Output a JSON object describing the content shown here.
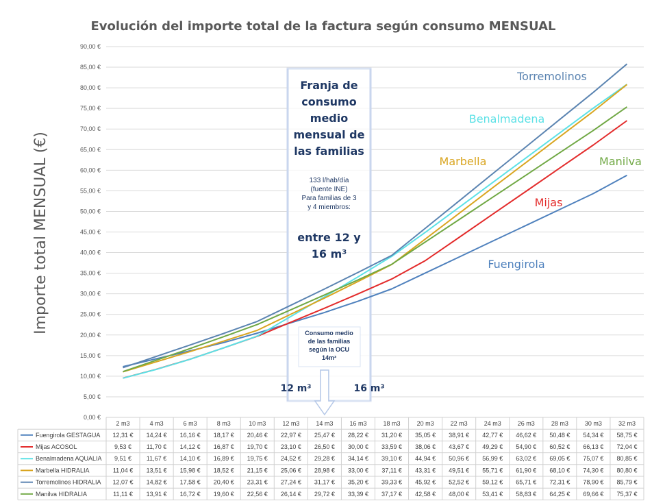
{
  "chart_data": {
    "type": "line",
    "title": "Evolución del importe total de la factura según consumo MENSUAL",
    "ylabel": "Importe total MENSUAL (€)",
    "xlabel": "",
    "ylim": [
      0,
      90
    ],
    "yticks": [
      "0,00 €",
      "5,00 €",
      "10,00 €",
      "15,00 €",
      "20,00 €",
      "25,00 €",
      "30,00 €",
      "35,00 €",
      "40,00 €",
      "45,00 €",
      "50,00 €",
      "55,00 €",
      "60,00 €",
      "65,00 €",
      "70,00 €",
      "75,00 €",
      "80,00 €",
      "85,00 €",
      "90,00 €"
    ],
    "categories": [
      "2 m3",
      "4 m3",
      "6 m3",
      "8 m3",
      "10 m3",
      "12 m3",
      "14 m3",
      "16 m3",
      "18 m3",
      "20 m3",
      "22 m3",
      "24 m3",
      "26 m3",
      "28 m3",
      "30 m3",
      "32 m3"
    ],
    "grid": true,
    "legend": "table-bottom",
    "series": [
      {
        "name": "Fuengirola GESTAGUA",
        "color": "#4f81bd",
        "values": [
          12.31,
          14.24,
          16.16,
          18.17,
          20.46,
          22.97,
          25.47,
          28.22,
          31.2,
          35.05,
          38.91,
          42.77,
          46.62,
          50.48,
          54.34,
          58.75
        ],
        "labels": [
          "12,31 €",
          "14,24 €",
          "16,16 €",
          "18,17 €",
          "20,46 €",
          "22,97 €",
          "25,47 €",
          "28,22 €",
          "31,20 €",
          "35,05 €",
          "38,91 €",
          "42,77 €",
          "46,62 €",
          "50,48 €",
          "54,34 €",
          "58,75 €"
        ]
      },
      {
        "name": "Mijas ACOSOL",
        "color": "#e32b2b",
        "values": [
          9.53,
          11.7,
          14.12,
          16.87,
          19.7,
          23.1,
          26.5,
          30.0,
          33.59,
          38.06,
          43.67,
          49.29,
          54.9,
          60.52,
          66.13,
          72.04
        ],
        "labels": [
          "9,53 €",
          "11,70 €",
          "14,12 €",
          "16,87 €",
          "19,70 €",
          "23,10 €",
          "26,50 €",
          "30,00 €",
          "33,59 €",
          "38,06 €",
          "43,67 €",
          "49,29 €",
          "54,90 €",
          "60,52 €",
          "66,13 €",
          "72,04 €"
        ]
      },
      {
        "name": "Benalmadena AQUALIA",
        "color": "#5ce1e6",
        "values": [
          9.51,
          11.67,
          14.1,
          16.89,
          19.75,
          24.52,
          29.28,
          34.14,
          39.1,
          44.94,
          50.96,
          56.99,
          63.02,
          69.05,
          75.07,
          80.85
        ],
        "labels": [
          "9,51 €",
          "11,67 €",
          "14,10 €",
          "16,89 €",
          "19,75 €",
          "24,52 €",
          "29,28 €",
          "34,14 €",
          "39,10 €",
          "44,94 €",
          "50,96 €",
          "56,99 €",
          "63,02 €",
          "69,05 €",
          "75,07 €",
          "80,85 €"
        ]
      },
      {
        "name": "Marbella HIDRALIA",
        "color": "#d9a520",
        "values": [
          11.04,
          13.51,
          15.98,
          18.52,
          21.15,
          25.06,
          28.98,
          33.0,
          37.11,
          43.31,
          49.51,
          55.71,
          61.9,
          68.1,
          74.3,
          80.8
        ],
        "labels": [
          "11,04 €",
          "13,51 €",
          "15,98 €",
          "18,52 €",
          "21,15 €",
          "25,06 €",
          "28,98 €",
          "33,00 €",
          "37,11 €",
          "43,31 €",
          "49,51 €",
          "55,71 €",
          "61,90 €",
          "68,10 €",
          "74,30 €",
          "80,80 €"
        ]
      },
      {
        "name": "Torremolinos HIDRALIA",
        "color": "#5b84b1",
        "values": [
          12.07,
          14.82,
          17.58,
          20.4,
          23.31,
          27.24,
          31.17,
          35.2,
          39.33,
          45.92,
          52.52,
          59.12,
          65.71,
          72.31,
          78.9,
          85.79
        ],
        "labels": [
          "12,07 €",
          "14,82 €",
          "17,58 €",
          "20,40 €",
          "23,31 €",
          "27,24 €",
          "31,17 €",
          "35,20 €",
          "39,33 €",
          "45,92 €",
          "52,52 €",
          "59,12 €",
          "65,71 €",
          "72,31 €",
          "78,90 €",
          "85,79 €"
        ]
      },
      {
        "name": "Manilva HIDRALIA",
        "color": "#70a844",
        "values": [
          11.11,
          13.91,
          16.72,
          19.6,
          22.56,
          26.14,
          29.72,
          33.39,
          37.17,
          42.58,
          48.0,
          53.41,
          58.83,
          64.25,
          69.66,
          75.37
        ],
        "labels": [
          "11,11 €",
          "13,91 €",
          "16,72 €",
          "19,60 €",
          "22,56 €",
          "26,14 €",
          "29,72 €",
          "33,39 €",
          "37,17 €",
          "42,58 €",
          "48,00 €",
          "53,41 €",
          "58,83 €",
          "64,25 €",
          "69,66 €",
          "75,37 €"
        ]
      }
    ],
    "annotations": {
      "municipalities": [
        {
          "text": "Torremolinos",
          "color": "#5b84b1"
        },
        {
          "text": "Benalmadena",
          "color": "#5ce1e6"
        },
        {
          "text": "Marbella",
          "color": "#d9a520"
        },
        {
          "text": "Manilva",
          "color": "#70a844"
        },
        {
          "text": "Mijas",
          "color": "#e32b2b"
        },
        {
          "text": "Fuengirola",
          "color": "#4f81bd"
        }
      ],
      "band_heading": [
        "Franja de",
        "consumo",
        "medio",
        "mensual de",
        "las familias"
      ],
      "band_source": [
        "133 l/hab/día",
        "(fuente INE)",
        "Para familias de 3",
        "y 4 miembros:"
      ],
      "band_range": [
        "entre 12 y",
        "16 m³"
      ],
      "ocu_note": [
        "Consumo medio",
        "de las familias",
        "según la OCU",
        "14m³"
      ],
      "left_marker": "12 m³",
      "right_marker": "16 m³"
    }
  }
}
